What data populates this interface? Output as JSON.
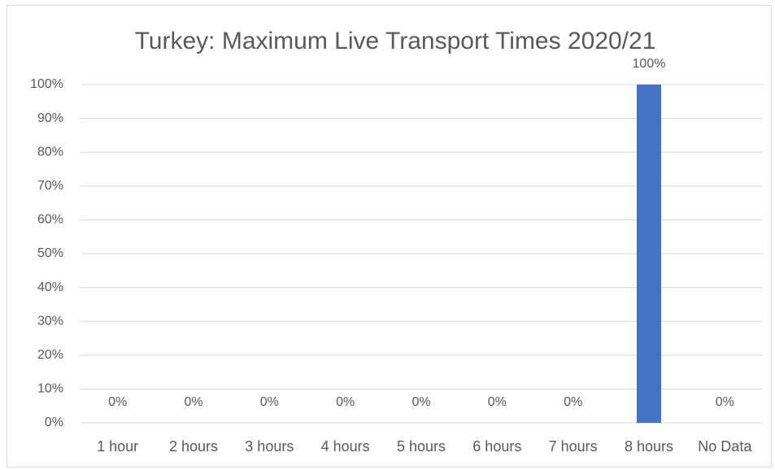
{
  "chart_data": {
    "type": "bar",
    "title": "Turkey: Maximum Live Transport Times 2020/21",
    "categories": [
      "1 hour",
      "2 hours",
      "3 hours",
      "4 hours",
      "5 hours",
      "6 hours",
      "7 hours",
      "8 hours",
      "No Data"
    ],
    "values": [
      0,
      0,
      0,
      0,
      0,
      0,
      0,
      100,
      0
    ],
    "value_labels": [
      "0%",
      "0%",
      "0%",
      "0%",
      "0%",
      "0%",
      "0%",
      "100%",
      "0%"
    ],
    "color": "#4472c4",
    "ylim": [
      0,
      100
    ],
    "yticks": [
      {
        "value": 0,
        "label": "0%"
      },
      {
        "value": 10,
        "label": "10%"
      },
      {
        "value": 20,
        "label": "20%"
      },
      {
        "value": 30,
        "label": "30%"
      },
      {
        "value": 40,
        "label": "40%"
      },
      {
        "value": 50,
        "label": "50%"
      },
      {
        "value": 60,
        "label": "60%"
      },
      {
        "value": 70,
        "label": "70%"
      },
      {
        "value": 80,
        "label": "80%"
      },
      {
        "value": 90,
        "label": "90%"
      },
      {
        "value": 100,
        "label": "100%"
      }
    ],
    "grid": true
  }
}
